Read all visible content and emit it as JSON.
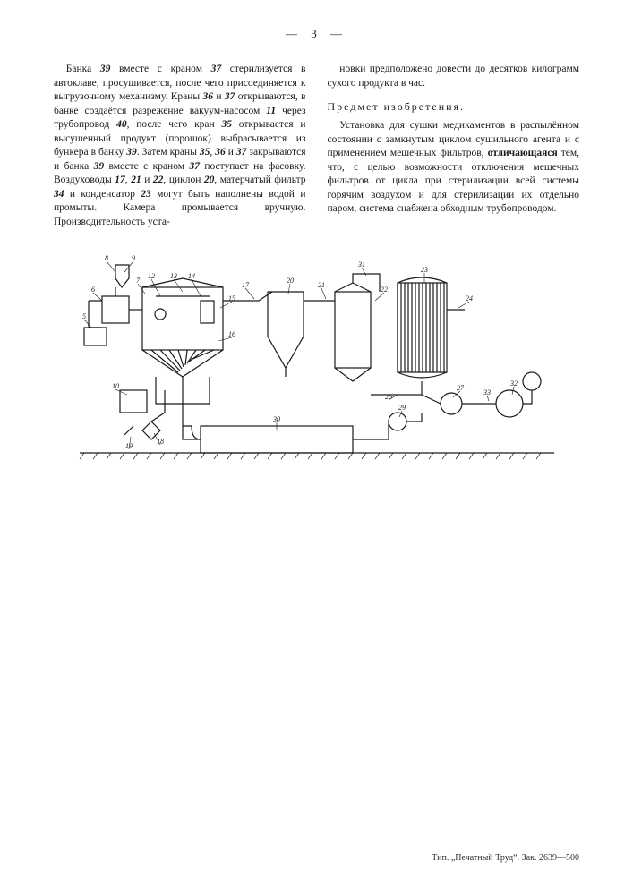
{
  "page_number": "— 3 —",
  "left_column": {
    "p1_a": "Банка ",
    "ref39a": "39",
    "p1_b": " вместе с краном ",
    "ref37a": "37",
    "p1_c": " стерилизуется в автоклаве, просушивается, после чего присоединяется к выгрузочному механизму. Краны ",
    "ref36a": "36",
    "p1_d": " и ",
    "ref37b": "37",
    "p1_e": " открываются, в банке создаётся разрежение вакуум-насосом ",
    "ref11": "11",
    "p1_f": " через трубопровод ",
    "ref40": "40",
    "p1_g": ", после чего кран ",
    "ref35a": "35",
    "p1_h": " открывается и высушенный продукт (порошок) выбрасывается из бункера в банку ",
    "ref39b": "39",
    "p1_i": ". Затем краны ",
    "ref35b": "35",
    "p1_j": ", ",
    "ref36b": "36",
    "p1_k": " и ",
    "ref37c": "37",
    "p1_l": " закрываются и банка ",
    "ref39c": "39",
    "p1_m": " вместе с краном ",
    "ref37d": "37",
    "p1_n": " поступает на фасовку. Воздуховоды ",
    "ref17": "17",
    "p1_o": ", ",
    "ref21": "21",
    "p1_p": " и ",
    "ref22": "22",
    "p1_q": ", циклон ",
    "ref20": "20",
    "p1_r": ", матерчатый фильтр ",
    "ref34": "34",
    "p1_s": " и конденсатор ",
    "ref23": "23",
    "p1_t": " могут быть наполнены водой и промыты. Камера промывается вручную. Производительность уста-"
  },
  "right_column": {
    "p1": "новки предположено довести до десятков килограмм сухого продукта в час.",
    "heading": "Предмет изобретения.",
    "p2_a": "Установка для сушки медикаментов в распылённом состоянии с замкнутым циклом сушильного агента и с применением мешечных фильтров, ",
    "p2_bold": "отличающаяся",
    "p2_b": " тем, что, с целью возможности отключения мешечных фильтров от цикла при стерилизации всей системы горячим воздухом и для стерилизации их отдельно паром, система снабжена обходным трубопроводом."
  },
  "figure": {
    "labels": [
      "8",
      "9",
      "6",
      "5",
      "12",
      "13",
      "14",
      "15",
      "16",
      "7",
      "17",
      "20",
      "21",
      "31",
      "22",
      "23",
      "24",
      "26",
      "27",
      "33",
      "32",
      "18",
      "19",
      "10",
      "30",
      "29"
    ],
    "line_color": "#1a1a1a",
    "line_width": 1.2,
    "label_fontsize": 8,
    "background": "#ffffff"
  },
  "footer": "Тип. „Печатный Труд“. Зак. 2639—500"
}
